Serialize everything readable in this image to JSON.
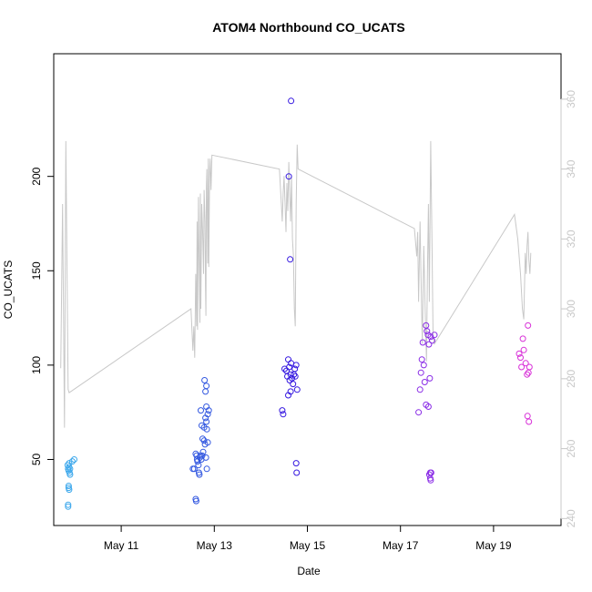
{
  "chart_data": {
    "type": "scatter",
    "title": "ATOM4 Northbound CO_UCATS",
    "xlabel": "Date",
    "ylabel": "CO_UCATS",
    "x_ticks": [
      "May 11",
      "May 13",
      "May 15",
      "May 17",
      "May 19"
    ],
    "x_tick_days": [
      11,
      13,
      15,
      17,
      19
    ],
    "xlim": [
      9.55,
      20.45
    ],
    "ylim": [
      15,
      265
    ],
    "y_ticks": [
      50,
      100,
      150,
      200
    ],
    "y2lim": [
      238,
      373
    ],
    "y2_ticks": [
      240,
      260,
      280,
      300,
      320,
      340,
      360
    ],
    "grid": false,
    "legend": "none",
    "line_color": "#c8c8c8",
    "point_colors": {
      "may10": "#3da8ec",
      "may13": "#3358e0",
      "may15": "#3518e0",
      "may17": "#8a2ce6",
      "may19": "#d830d8"
    },
    "series": [
      {
        "group": "may10",
        "points": [
          [
            9.86,
            26
          ],
          [
            9.86,
            25
          ],
          [
            9.87,
            36
          ],
          [
            9.87,
            35
          ],
          [
            9.88,
            34
          ],
          [
            9.85,
            47
          ],
          [
            9.86,
            45
          ],
          [
            9.87,
            44
          ],
          [
            9.88,
            46
          ],
          [
            9.89,
            43
          ],
          [
            9.9,
            45
          ],
          [
            9.9,
            42
          ],
          [
            9.88,
            48
          ],
          [
            9.95,
            49
          ],
          [
            9.99,
            50
          ]
        ]
      },
      {
        "group": "may13",
        "points": [
          [
            12.54,
            45
          ],
          [
            12.57,
            45
          ],
          [
            12.6,
            53
          ],
          [
            12.62,
            52
          ],
          [
            12.63,
            50
          ],
          [
            12.64,
            49
          ],
          [
            12.66,
            47
          ],
          [
            12.67,
            43
          ],
          [
            12.68,
            42
          ],
          [
            12.69,
            51
          ],
          [
            12.7,
            52
          ],
          [
            12.72,
            50
          ],
          [
            12.74,
            52
          ],
          [
            12.76,
            54
          ],
          [
            12.78,
            60
          ],
          [
            12.8,
            58
          ],
          [
            12.82,
            51
          ],
          [
            12.84,
            45
          ],
          [
            12.86,
            59
          ],
          [
            12.71,
            76
          ],
          [
            12.73,
            68
          ],
          [
            12.75,
            61
          ],
          [
            12.78,
            67
          ],
          [
            12.81,
            72
          ],
          [
            12.83,
            70
          ],
          [
            12.84,
            66
          ],
          [
            12.86,
            74
          ],
          [
            12.88,
            76
          ],
          [
            12.81,
            86
          ],
          [
            12.83,
            89
          ],
          [
            12.79,
            92
          ],
          [
            12.83,
            78
          ],
          [
            12.6,
            29
          ],
          [
            12.61,
            28
          ]
        ]
      },
      {
        "group": "may15",
        "points": [
          [
            14.46,
            76
          ],
          [
            14.48,
            74
          ],
          [
            14.51,
            98
          ],
          [
            14.55,
            97
          ],
          [
            14.57,
            94
          ],
          [
            14.59,
            103
          ],
          [
            14.61,
            99
          ],
          [
            14.62,
            92
          ],
          [
            14.64,
            95
          ],
          [
            14.65,
            101
          ],
          [
            14.67,
            93
          ],
          [
            14.69,
            90
          ],
          [
            14.71,
            95
          ],
          [
            14.73,
            98
          ],
          [
            14.74,
            94
          ],
          [
            14.76,
            100
          ],
          [
            14.78,
            87
          ],
          [
            14.59,
            84
          ],
          [
            14.64,
            86
          ],
          [
            14.6,
            200
          ],
          [
            14.63,
            156
          ],
          [
            14.65,
            240
          ],
          [
            14.76,
            48
          ],
          [
            14.77,
            43
          ]
        ]
      },
      {
        "group": "may17",
        "points": [
          [
            17.39,
            75
          ],
          [
            17.42,
            87
          ],
          [
            17.44,
            96
          ],
          [
            17.46,
            103
          ],
          [
            17.48,
            112
          ],
          [
            17.5,
            100
          ],
          [
            17.52,
            91
          ],
          [
            17.55,
            121
          ],
          [
            17.57,
            118
          ],
          [
            17.59,
            116
          ],
          [
            17.61,
            111
          ],
          [
            17.63,
            93
          ],
          [
            17.65,
            115
          ],
          [
            17.68,
            113
          ],
          [
            17.73,
            116
          ],
          [
            17.55,
            79
          ],
          [
            17.6,
            78
          ],
          [
            17.62,
            42
          ],
          [
            17.64,
            43
          ],
          [
            17.66,
            43
          ],
          [
            17.64,
            40
          ],
          [
            17.65,
            39
          ]
        ]
      },
      {
        "group": "may19",
        "points": [
          [
            19.55,
            106
          ],
          [
            19.58,
            104
          ],
          [
            19.6,
            99
          ],
          [
            19.63,
            114
          ],
          [
            19.65,
            108
          ],
          [
            19.69,
            101
          ],
          [
            19.72,
            95
          ],
          [
            19.74,
            121
          ],
          [
            19.75,
            96
          ],
          [
            19.77,
            99
          ],
          [
            19.73,
            73
          ],
          [
            19.76,
            70
          ]
        ]
      }
    ],
    "line_series": {
      "axis": "right",
      "points": [
        [
          9.7,
          283
        ],
        [
          9.74,
          330
        ],
        [
          9.76,
          300
        ],
        [
          9.78,
          266
        ],
        [
          9.81,
          348
        ],
        [
          9.86,
          277
        ],
        [
          9.88,
          276
        ],
        [
          12.5,
          300
        ],
        [
          12.54,
          288
        ],
        [
          12.56,
          295
        ],
        [
          12.58,
          286
        ],
        [
          12.6,
          310
        ],
        [
          12.62,
          295
        ],
        [
          12.63,
          325
        ],
        [
          12.64,
          294
        ],
        [
          12.66,
          332
        ],
        [
          12.67,
          320
        ],
        [
          12.69,
          296
        ],
        [
          12.7,
          333
        ],
        [
          12.71,
          300
        ],
        [
          12.73,
          330
        ],
        [
          12.75,
          322
        ],
        [
          12.77,
          310
        ],
        [
          12.78,
          334
        ],
        [
          12.8,
          325
        ],
        [
          12.81,
          307
        ],
        [
          12.82,
          298
        ],
        [
          12.83,
          335
        ],
        [
          12.84,
          340
        ],
        [
          12.86,
          313
        ],
        [
          12.87,
          343
        ],
        [
          12.88,
          312
        ],
        [
          12.9,
          340
        ],
        [
          12.91,
          343
        ],
        [
          12.93,
          334
        ],
        [
          12.95,
          344
        ],
        [
          14.4,
          340
        ],
        [
          14.44,
          330
        ],
        [
          14.46,
          325
        ],
        [
          14.48,
          333
        ],
        [
          14.5,
          338
        ],
        [
          14.52,
          330
        ],
        [
          14.54,
          322
        ],
        [
          14.56,
          336
        ],
        [
          14.58,
          328
        ],
        [
          14.6,
          342
        ],
        [
          14.62,
          333
        ],
        [
          14.64,
          325
        ],
        [
          14.66,
          338
        ],
        [
          14.68,
          320
        ],
        [
          14.7,
          315
        ],
        [
          14.72,
          300
        ],
        [
          14.74,
          295
        ],
        [
          14.76,
          330
        ],
        [
          14.78,
          347
        ],
        [
          14.8,
          340
        ],
        [
          17.3,
          323
        ],
        [
          17.35,
          315
        ],
        [
          17.37,
          322
        ],
        [
          17.39,
          302
        ],
        [
          17.42,
          325
        ],
        [
          17.44,
          310
        ],
        [
          17.47,
          290
        ],
        [
          17.5,
          318
        ],
        [
          17.53,
          300
        ],
        [
          17.56,
          285
        ],
        [
          17.58,
          310
        ],
        [
          17.6,
          330
        ],
        [
          17.62,
          302
        ],
        [
          17.65,
          348
        ],
        [
          17.68,
          315
        ],
        [
          17.7,
          292
        ],
        [
          17.73,
          290
        ],
        [
          19.45,
          327
        ],
        [
          19.52,
          320
        ],
        [
          19.58,
          310
        ],
        [
          19.62,
          300
        ],
        [
          19.65,
          297
        ],
        [
          19.68,
          316
        ],
        [
          19.7,
          310
        ],
        [
          19.72,
          318
        ],
        [
          19.74,
          322
        ],
        [
          19.76,
          314
        ],
        [
          19.78,
          310
        ],
        [
          19.8,
          316
        ]
      ]
    }
  }
}
